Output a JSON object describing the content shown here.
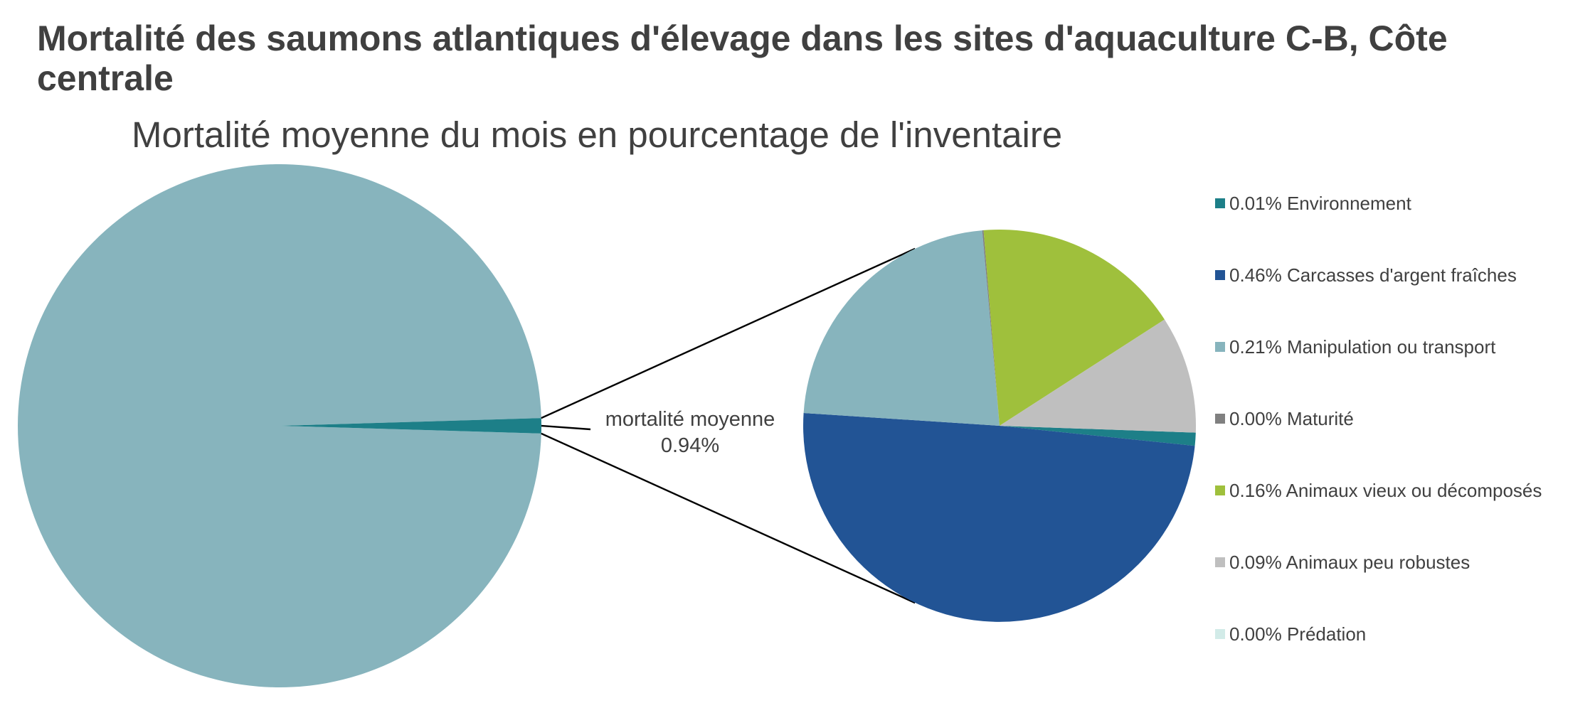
{
  "chart_data": {
    "type": "pie",
    "subtype": "pie-of-pie",
    "title": "Mortalité des saumons atlantiques d'élevage dans les sites d'aquaculture C-B, Côte centrale",
    "subtitle": "Mortalité moyenne du mois en pourcentage de l'inventaire",
    "main_pie": {
      "slices": [
        {
          "name": "",
          "value": 99.06,
          "color": "#87b4bd"
        },
        {
          "name": "mortalité moyenne",
          "value": 0.94,
          "value_label": "0.94%",
          "color": "#1d7f88"
        }
      ]
    },
    "center_label": {
      "line1": "mortalité moyenne",
      "line2": "0.94%"
    },
    "secondary_pie": {
      "slices": [
        {
          "name": "Environnement",
          "value": 0.01,
          "label": "0.01% Environnement",
          "color": "#1d7f88"
        },
        {
          "name": "Carcasses d'argent fraîches",
          "value": 0.46,
          "label": "0.46% Carcasses d'argent fraîches",
          "color": "#225495"
        },
        {
          "name": "Manipulation ou transport",
          "value": 0.21,
          "label": "0.21% Manipulation ou transport",
          "color": "#87b4bd"
        },
        {
          "name": "Maturité",
          "value": 0.001,
          "label": "0.00% Maturité",
          "color": "#808080"
        },
        {
          "name": "Animaux vieux ou décomposés",
          "value": 0.16,
          "label": "0.16% Animaux vieux ou décomposés",
          "color": "#9fc03c"
        },
        {
          "name": "Animaux peu robustes",
          "value": 0.09,
          "label": "0.09% Animaux peu robustes",
          "color": "#bfbfbf"
        },
        {
          "name": "Prédation",
          "value": 0.0,
          "label": "0.00% Prédation",
          "color": "#d2ebe8"
        }
      ]
    },
    "legend": {
      "position": "right",
      "items": [
        {
          "label": "0.01% Environnement",
          "color": "#1d7f88"
        },
        {
          "label": "0.46% Carcasses d'argent fraîches",
          "color": "#225495"
        },
        {
          "label": "0.21% Manipulation ou transport",
          "color": "#87b4bd"
        },
        {
          "label": "0.00% Maturité",
          "color": "#808080"
        },
        {
          "label": "0.16% Animaux vieux ou décomposés",
          "color": "#9fc03c"
        },
        {
          "label": "0.09% Animaux peu robustes",
          "color": "#bfbfbf"
        },
        {
          "label": "0.00% Prédation",
          "color": "#d2ebe8"
        }
      ]
    }
  }
}
